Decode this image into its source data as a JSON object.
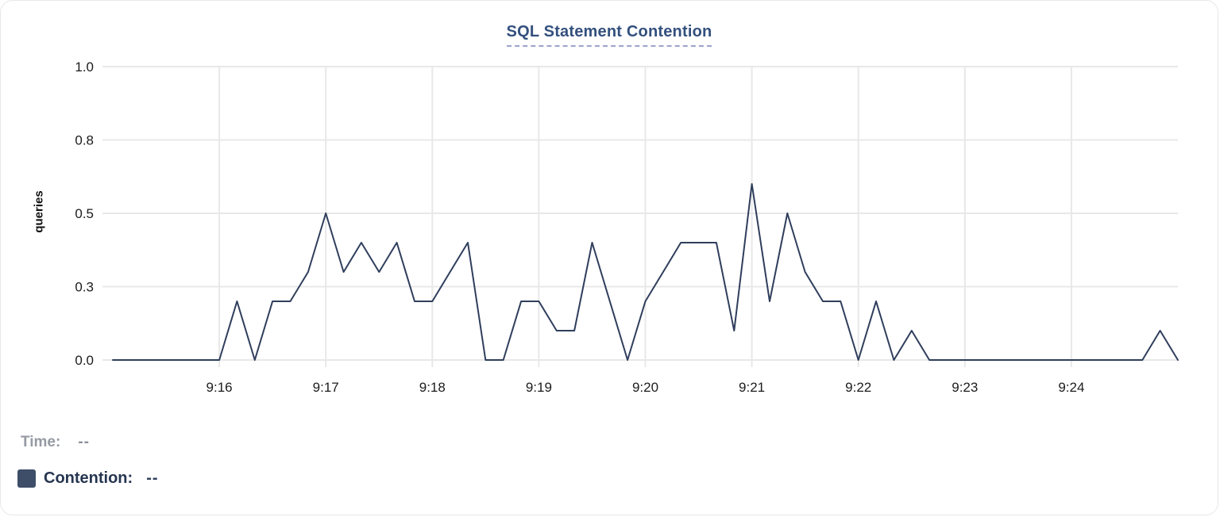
{
  "title": "SQL Statement Contention",
  "footer": {
    "time_label": "Time:",
    "time_value": "--",
    "series_label": "Contention:",
    "series_value": "--"
  },
  "colors": {
    "title": "#33507d",
    "title_underline": "#9aa3cb",
    "line": "#2f3e5c",
    "grid": "#e8e8e8",
    "tick_label": "#1c1c1c",
    "axis_label": "#0f0f0f",
    "time_row_text": "#8e949d",
    "legend_text": "#263550",
    "legend_swatch": "#3e4d68",
    "card_border": "#e8e8e8",
    "background": "#ffffff"
  },
  "chart_data": {
    "type": "line",
    "title": "SQL Statement Contention",
    "xlabel": "",
    "ylabel": "queries",
    "ylim": [
      0,
      1.0
    ],
    "grid": true,
    "legend_position": "bottom-left",
    "yticks": [
      {
        "value": 0.0,
        "label": "0.0"
      },
      {
        "value": 0.25,
        "label": "0.3"
      },
      {
        "value": 0.5,
        "label": "0.5"
      },
      {
        "value": 0.75,
        "label": "0.8"
      },
      {
        "value": 1.0,
        "label": "1.0"
      }
    ],
    "xticks": [
      {
        "seconds": 60,
        "label": "9:16"
      },
      {
        "seconds": 120,
        "label": "9:17"
      },
      {
        "seconds": 180,
        "label": "9:18"
      },
      {
        "seconds": 240,
        "label": "9:19"
      },
      {
        "seconds": 300,
        "label": "9:20"
      },
      {
        "seconds": 360,
        "label": "9:21"
      },
      {
        "seconds": 420,
        "label": "9:22"
      },
      {
        "seconds": 480,
        "label": "9:23"
      },
      {
        "seconds": 540,
        "label": "9:24"
      }
    ],
    "x_range": [
      "9:15:00",
      "9:25:00"
    ],
    "sample_interval_seconds": 10,
    "series": [
      {
        "name": "Contention",
        "color": "#2f3e5c",
        "times": [
          "9:15:00",
          "9:15:10",
          "9:15:20",
          "9:15:30",
          "9:15:40",
          "9:15:50",
          "9:16:00",
          "9:16:10",
          "9:16:20",
          "9:16:30",
          "9:16:40",
          "9:16:50",
          "9:17:00",
          "9:17:10",
          "9:17:20",
          "9:17:30",
          "9:17:40",
          "9:17:50",
          "9:18:00",
          "9:18:10",
          "9:18:20",
          "9:18:30",
          "9:18:40",
          "9:18:50",
          "9:19:00",
          "9:19:10",
          "9:19:20",
          "9:19:30",
          "9:19:40",
          "9:19:50",
          "9:20:00",
          "9:20:10",
          "9:20:20",
          "9:20:30",
          "9:20:40",
          "9:20:50",
          "9:21:00",
          "9:21:10",
          "9:21:20",
          "9:21:30",
          "9:21:40",
          "9:21:50",
          "9:22:00",
          "9:22:10",
          "9:22:20",
          "9:22:30",
          "9:22:40",
          "9:22:50",
          "9:23:00",
          "9:23:10",
          "9:23:20",
          "9:23:30",
          "9:23:40",
          "9:23:50",
          "9:24:00",
          "9:24:10",
          "9:24:20",
          "9:24:30",
          "9:24:40",
          "9:24:50",
          "9:25:00"
        ],
        "values": [
          0,
          0,
          0,
          0,
          0,
          0,
          0,
          0.2,
          0,
          0.2,
          0.2,
          0.3,
          0.5,
          0.3,
          0.4,
          0.3,
          0.4,
          0.2,
          0.2,
          0.3,
          0.4,
          0,
          0,
          0.2,
          0.2,
          0.1,
          0.1,
          0.4,
          0.2,
          0,
          0.2,
          0.3,
          0.4,
          0.4,
          0.4,
          0.1,
          0.6,
          0.2,
          0.5,
          0.3,
          0.2,
          0.2,
          0,
          0.2,
          0,
          0.1,
          0,
          0,
          0,
          0,
          0,
          0,
          0,
          0,
          0,
          0,
          0,
          0,
          0,
          0.1,
          0
        ]
      }
    ]
  }
}
